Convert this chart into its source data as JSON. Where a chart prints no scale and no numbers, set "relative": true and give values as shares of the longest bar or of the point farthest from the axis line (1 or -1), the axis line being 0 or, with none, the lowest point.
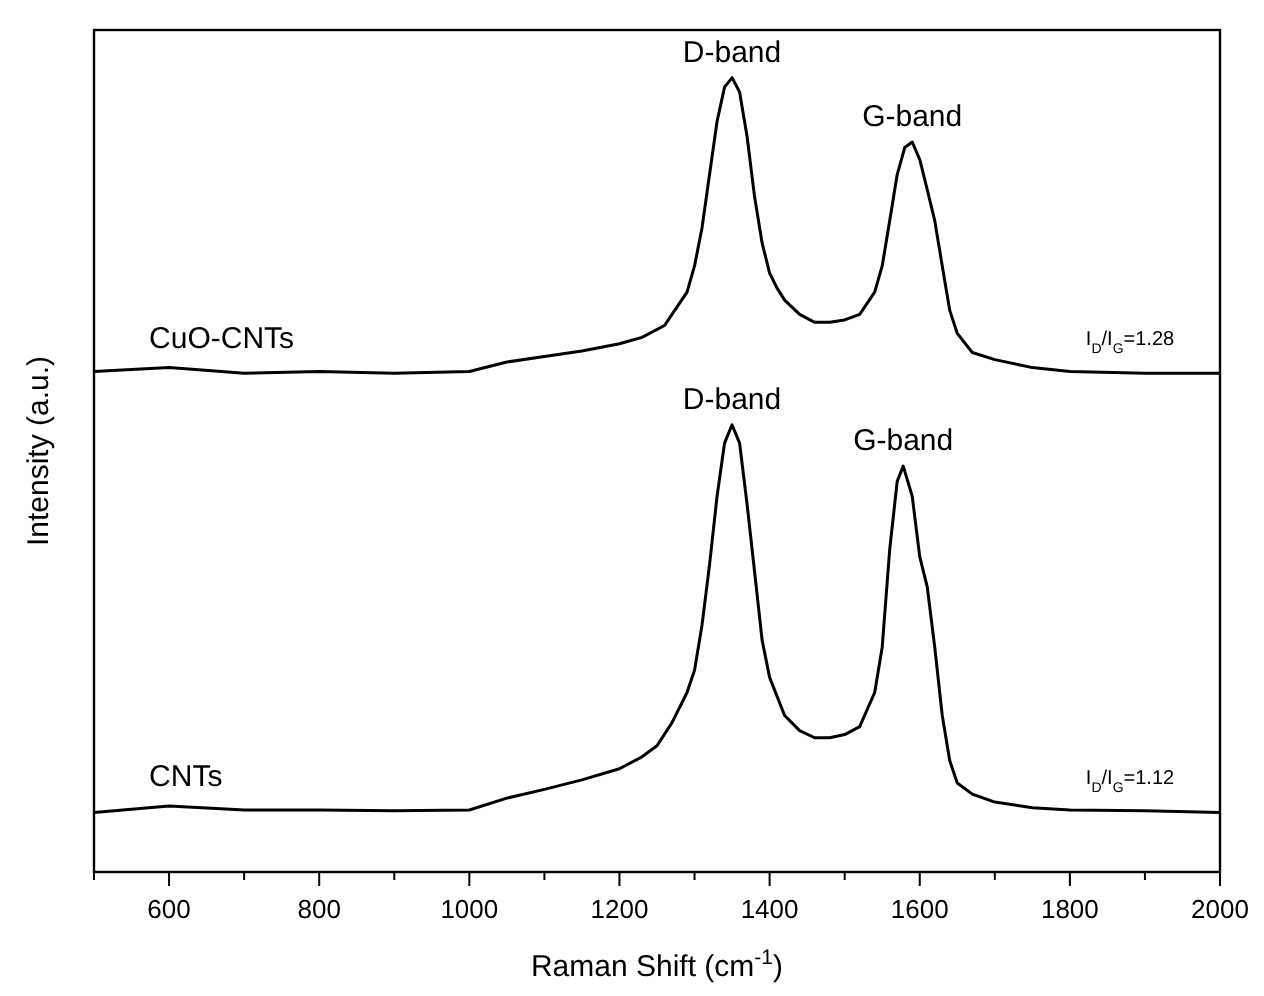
{
  "chart_data": {
    "type": "line",
    "relative": true,
    "xlabel": "Raman Shift (cm$^{-1}$)",
    "ylabel": "Intensity (a.u.)",
    "xlim": [
      500,
      2000
    ],
    "xticks": [
      {
        "value": 500,
        "label": null
      },
      600,
      {
        "value": 700,
        "label": null
      },
      800,
      {
        "value": 900,
        "label": null
      },
      1000,
      {
        "value": 1100,
        "label": null
      },
      1200,
      {
        "value": 1300,
        "label": null
      },
      1400,
      {
        "value": 1500,
        "label": null
      },
      1600,
      {
        "value": 1700,
        "label": null
      },
      1800,
      {
        "value": 1900,
        "label": null
      },
      2000
    ],
    "grid": false,
    "marker": "none",
    "line_style": "solid",
    "series": [
      {
        "name": "CuO-CNTs",
        "color": "#000000",
        "x": [
          500,
          600,
          700,
          800,
          900,
          1000,
          1050,
          1100,
          1150,
          1200,
          1230,
          1260,
          1270,
          1290,
          1300,
          1310,
          1320,
          1330,
          1340,
          1350,
          1360,
          1370,
          1380,
          1390,
          1400,
          1410,
          1420,
          1440,
          1460,
          1480,
          1500,
          1520,
          1540,
          1550,
          1560,
          1570,
          1580,
          1590,
          1600,
          1610,
          1620,
          1630,
          1640,
          1650,
          1670,
          1700,
          1750,
          1800,
          1900,
          2000
        ],
        "values": [
          0.63,
          0.635,
          0.628,
          0.63,
          0.628,
          0.63,
          0.642,
          0.649,
          0.656,
          0.665,
          0.673,
          0.688,
          0.702,
          0.73,
          0.763,
          0.811,
          0.878,
          0.945,
          0.988,
          1.0,
          0.982,
          0.926,
          0.85,
          0.792,
          0.754,
          0.735,
          0.72,
          0.702,
          0.692,
          0.692,
          0.695,
          0.702,
          0.73,
          0.763,
          0.82,
          0.878,
          0.912,
          0.919,
          0.897,
          0.859,
          0.82,
          0.763,
          0.707,
          0.678,
          0.654,
          0.645,
          0.635,
          0.63,
          0.628,
          0.628
        ]
      },
      {
        "name": "CNTs",
        "color": "#000000",
        "x": [
          500,
          600,
          700,
          800,
          900,
          1000,
          1050,
          1100,
          1150,
          1200,
          1230,
          1250,
          1270,
          1290,
          1300,
          1310,
          1320,
          1330,
          1340,
          1350,
          1360,
          1370,
          1380,
          1390,
          1400,
          1420,
          1440,
          1460,
          1480,
          1500,
          1520,
          1540,
          1550,
          1560,
          1570,
          1578,
          1590,
          1600,
          1610,
          1620,
          1630,
          1640,
          1650,
          1670,
          1700,
          1750,
          1800,
          1900,
          2000
        ],
        "values": [
          0.075,
          0.083,
          0.078,
          0.078,
          0.077,
          0.078,
          0.093,
          0.104,
          0.116,
          0.13,
          0.145,
          0.159,
          0.188,
          0.226,
          0.254,
          0.311,
          0.387,
          0.473,
          0.54,
          0.563,
          0.54,
          0.463,
          0.378,
          0.292,
          0.245,
          0.197,
          0.178,
          0.169,
          0.169,
          0.173,
          0.183,
          0.226,
          0.283,
          0.406,
          0.492,
          0.511,
          0.473,
          0.397,
          0.359,
          0.283,
          0.197,
          0.14,
          0.112,
          0.098,
          0.088,
          0.081,
          0.078,
          0.077,
          0.075
        ]
      }
    ],
    "annotations": [
      {
        "text": "D-band",
        "x": 1350,
        "y": 1.0
      },
      {
        "text": "G-band",
        "x": 1590,
        "y": 0.919
      },
      {
        "text": "D-band",
        "x": 1350,
        "y": 0.563
      },
      {
        "text": "G-band",
        "x": 1578,
        "y": 0.511
      },
      "I$_{D}$/I$_{G}$=1.28",
      "I$_{D}$/I$_{G}$=1.12"
    ]
  }
}
